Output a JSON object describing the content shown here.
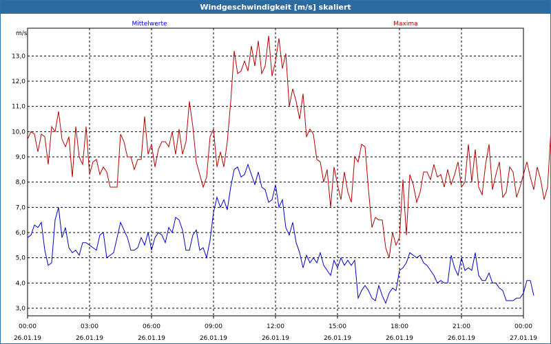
{
  "window": {
    "title": "Windgeschwindigkeit [m/s] skaliert"
  },
  "chart_data": {
    "type": "line",
    "title": "Windgeschwindigkeit [m/s] skaliert",
    "ylabel": "m/s",
    "ylim": [
      2.7,
      14.1
    ],
    "y_ticks": [
      "3,0",
      "4,0",
      "5,0",
      "6,0",
      "7,0",
      "8,0",
      "9,0",
      "10,0",
      "11,0",
      "12,0",
      "13,0"
    ],
    "x_ticks": [
      {
        "time": "00:00",
        "date": "26.01.19"
      },
      {
        "time": "03:00",
        "date": "26.01.19"
      },
      {
        "time": "06:00",
        "date": "26.01.19"
      },
      {
        "time": "09:00",
        "date": "26.01.19"
      },
      {
        "time": "12:00",
        "date": "26.01.19"
      },
      {
        "time": "15:00",
        "date": "26.01.19"
      },
      {
        "time": "18:00",
        "date": "26.01.19"
      },
      {
        "time": "21:00",
        "date": "26.01.19"
      },
      {
        "time": "00:00",
        "date": "27.01.19"
      }
    ],
    "grid": true,
    "x_interval_minutes": 10,
    "series": [
      {
        "name": "Mittelwerte",
        "color": "#0000c8",
        "values": [
          5.8,
          5.9,
          6.3,
          6.2,
          6.4,
          5.3,
          4.7,
          4.8,
          6.5,
          7.0,
          5.8,
          6.2,
          5.4,
          5.2,
          5.3,
          5.1,
          5.6,
          5.6,
          5.5,
          5.4,
          5.3,
          5.9,
          6.0,
          5.0,
          5.1,
          5.2,
          5.8,
          6.4,
          6.1,
          5.8,
          5.3,
          5.3,
          5.4,
          5.8,
          5.5,
          6.0,
          5.3,
          5.8,
          6.0,
          5.9,
          5.6,
          6.2,
          6.0,
          6.6,
          6.5,
          6.1,
          5.3,
          5.3,
          5.9,
          6.1,
          5.3,
          5.4,
          5.0,
          5.7,
          6.8,
          7.4,
          7.0,
          7.3,
          6.9,
          7.8,
          8.5,
          8.6,
          8.2,
          8.3,
          8.7,
          8.3,
          7.9,
          8.4,
          7.8,
          7.7,
          7.2,
          7.3,
          7.9,
          7.0,
          7.3,
          6.2,
          5.9,
          6.4,
          5.6,
          5.2,
          4.6,
          5.1,
          4.8,
          5.0,
          4.8,
          5.2,
          4.7,
          4.5,
          4.3,
          4.9,
          4.6,
          5.0,
          4.7,
          4.9,
          4.7,
          4.9,
          3.4,
          3.7,
          3.9,
          3.7,
          3.4,
          3.3,
          3.9,
          3.5,
          3.2,
          3.6,
          3.8,
          3.7,
          4.5,
          4.6,
          4.8,
          5.2,
          5.1,
          5.0,
          5.1,
          4.8,
          4.7,
          4.5,
          4.3,
          4.0,
          4.1,
          4.0,
          4.0,
          5.1,
          4.6,
          4.3,
          5.0,
          4.5,
          4.6,
          4.5,
          5.2,
          4.3,
          4.1,
          4.1,
          4.4,
          4.0,
          4.0,
          3.8,
          3.7,
          3.3,
          3.3,
          3.3,
          3.4,
          3.4,
          3.6,
          4.1,
          4.1,
          3.5
        ]
      },
      {
        "name": "Maxima",
        "color": "#b40000",
        "values": [
          9.7,
          10.0,
          9.9,
          9.2,
          9.9,
          9.8,
          8.7,
          10.2,
          10.0,
          10.8,
          9.7,
          9.4,
          9.8,
          8.2,
          10.2,
          9.0,
          8.7,
          10.2,
          8.3,
          8.8,
          8.9,
          8.3,
          8.6,
          8.4,
          7.8,
          7.8,
          7.8,
          9.9,
          9.6,
          9.0,
          9.0,
          8.5,
          8.9,
          8.9,
          10.6,
          9.1,
          9.5,
          8.6,
          9.3,
          9.6,
          9.6,
          9.4,
          10.0,
          9.1,
          10.1,
          9.1,
          9.6,
          11.2,
          10.2,
          8.8,
          8.3,
          7.8,
          8.2,
          9.8,
          10.1,
          8.6,
          9.2,
          8.6,
          9.6,
          11.2,
          13.2,
          12.3,
          12.4,
          12.8,
          12.4,
          13.4,
          12.6,
          13.6,
          12.3,
          12.6,
          13.8,
          12.2,
          12.8,
          13.7,
          12.5,
          13.1,
          11.0,
          11.7,
          11.2,
          10.5,
          11.5,
          9.8,
          10.1,
          9.9,
          8.9,
          8.8,
          8.0,
          8.5,
          7.0,
          8.6,
          7.9,
          7.3,
          8.4,
          7.6,
          7.2,
          9.0,
          8.8,
          9.5,
          9.4,
          7.7,
          6.2,
          6.6,
          6.5,
          6.5,
          5.4,
          5.0,
          6.0,
          5.5,
          5.8,
          8.1,
          5.9,
          8.3,
          7.9,
          7.2,
          7.6,
          8.4,
          8.4,
          8.1,
          8.7,
          8.2,
          8.3,
          7.8,
          8.5,
          7.9,
          8.3,
          8.8,
          7.8,
          8.0,
          9.5,
          8.0,
          9.3,
          7.8,
          7.5,
          8.7,
          9.5,
          7.7,
          8.3,
          8.8,
          7.4,
          7.6,
          8.6,
          8.4,
          7.4,
          7.8,
          8.3,
          8.8,
          8.2,
          7.7,
          8.6,
          8.1,
          7.3,
          7.8,
          10.1,
          7.1
        ]
      }
    ]
  }
}
